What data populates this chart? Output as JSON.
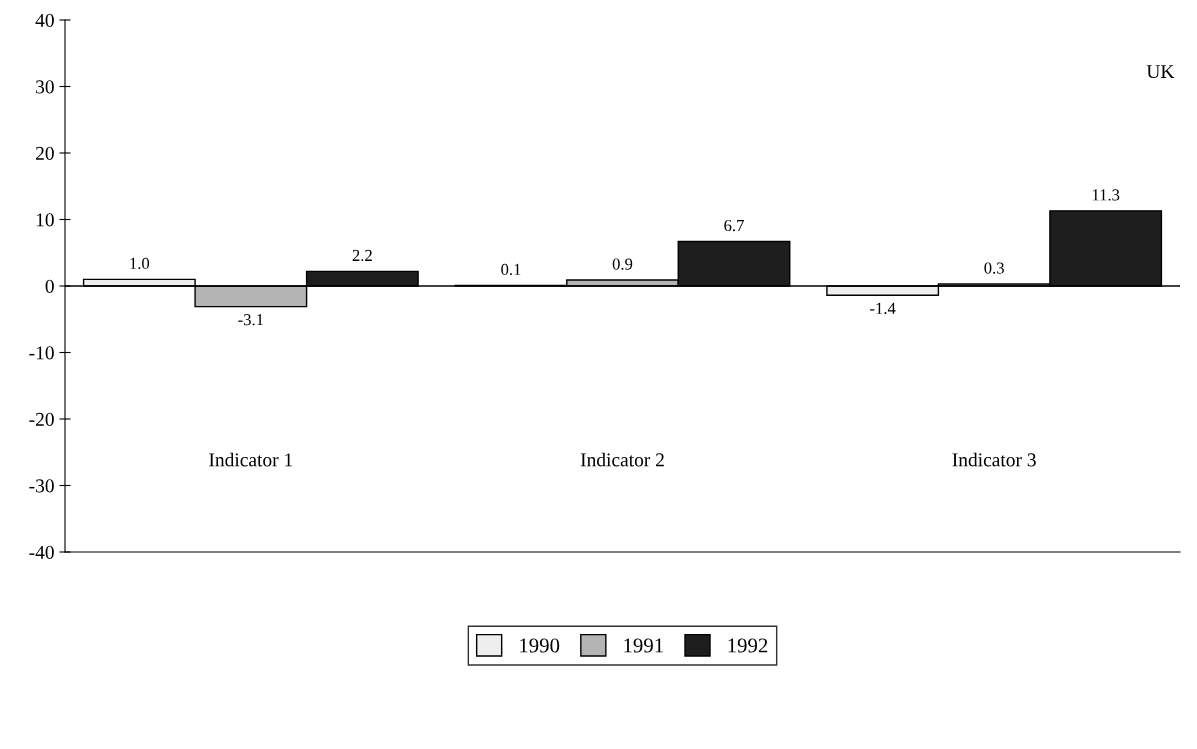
{
  "chart_data": {
    "type": "bar",
    "categories": [
      "Indicator 1",
      "Indicator 2",
      "Indicator 3"
    ],
    "series": [
      {
        "name": "1990",
        "color": "#eeeeee",
        "values": [
          1.0,
          0.1,
          -1.4
        ],
        "value_labels": [
          "1.0",
          "0.1",
          "-1.4"
        ]
      },
      {
        "name": "1991",
        "color": "#b4b4b4",
        "values": [
          -3.1,
          0.9,
          0.3
        ],
        "value_labels": [
          "-3.1",
          "0.9",
          "0.3"
        ]
      },
      {
        "name": "1992",
        "color": "#1e1e1e",
        "values": [
          2.2,
          6.7,
          11.3
        ],
        "value_labels": [
          "2.2",
          "6.7",
          "11.3"
        ]
      }
    ],
    "ylim": [
      -40,
      40
    ],
    "yticks": [
      -40,
      -30,
      -20,
      -10,
      0,
      10,
      20,
      30,
      40
    ],
    "annotations": [
      "UK"
    ],
    "legend": "bottom"
  }
}
